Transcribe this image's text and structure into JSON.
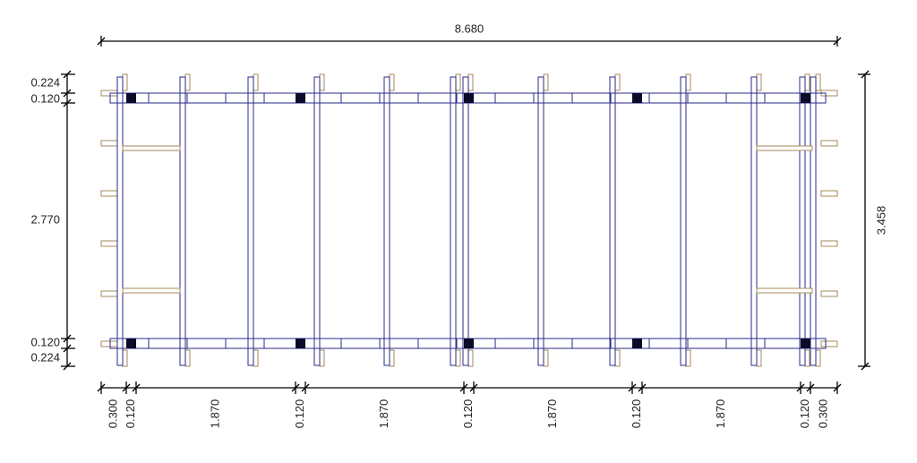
{
  "dimensions": {
    "top": "8.680",
    "right": "3.458",
    "left": [
      "0.224",
      "0.120",
      "2.770",
      "0.120",
      "0.224"
    ],
    "bottom": [
      "0.300",
      "0.120",
      "1.870",
      "0.120",
      "1.870",
      "0.120",
      "1.870",
      "0.120",
      "1.870",
      "0.120",
      "0.300"
    ]
  }
}
